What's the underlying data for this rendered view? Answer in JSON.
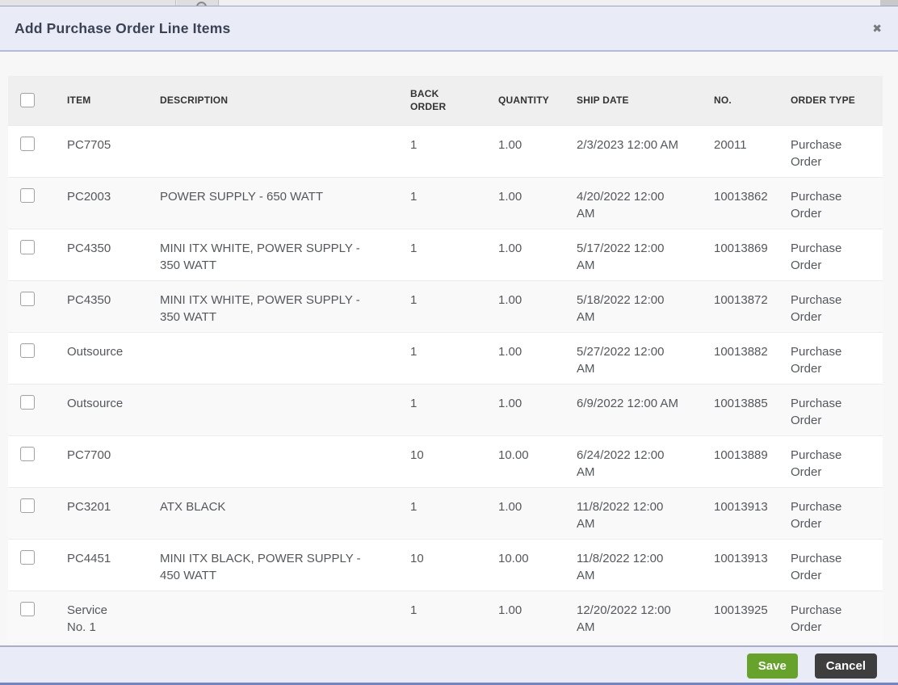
{
  "modal": {
    "title": "Add Purchase Order Line Items",
    "close_glyph": "✖"
  },
  "table": {
    "headers": [
      "ITEM",
      "DESCRIPTION",
      "BACK ORDER",
      "QUANTITY",
      "SHIP DATE",
      "NO.",
      "ORDER TYPE"
    ],
    "rows": [
      {
        "item": "PC7705",
        "description": "",
        "back_order": "1",
        "quantity": "1.00",
        "ship_date": "2/3/2023 12:00 AM",
        "no": "20011",
        "order_type": "Purchase Order"
      },
      {
        "item": "PC2003",
        "description": "POWER SUPPLY - 650 WATT",
        "back_order": "1",
        "quantity": "1.00",
        "ship_date": "4/20/2022 12:00 AM",
        "no": "10013862",
        "order_type": "Purchase Order"
      },
      {
        "item": "PC4350",
        "description": "MINI ITX WHITE, POWER SUPPLY - 350 WATT",
        "back_order": "1",
        "quantity": "1.00",
        "ship_date": "5/17/2022 12:00 AM",
        "no": "10013869",
        "order_type": "Purchase Order"
      },
      {
        "item": "PC4350",
        "description": "MINI ITX WHITE, POWER SUPPLY - 350 WATT",
        "back_order": "1",
        "quantity": "1.00",
        "ship_date": "5/18/2022 12:00 AM",
        "no": "10013872",
        "order_type": "Purchase Order"
      },
      {
        "item": "Outsource",
        "description": "",
        "back_order": "1",
        "quantity": "1.00",
        "ship_date": "5/27/2022 12:00 AM",
        "no": "10013882",
        "order_type": "Purchase Order"
      },
      {
        "item": "Outsource",
        "description": "",
        "back_order": "1",
        "quantity": "1.00",
        "ship_date": "6/9/2022 12:00 AM",
        "no": "10013885",
        "order_type": "Purchase Order"
      },
      {
        "item": "PC7700",
        "description": "",
        "back_order": "10",
        "quantity": "10.00",
        "ship_date": "6/24/2022 12:00 AM",
        "no": "10013889",
        "order_type": "Purchase Order"
      },
      {
        "item": "PC3201",
        "description": "ATX BLACK",
        "back_order": "1",
        "quantity": "1.00",
        "ship_date": "11/8/2022 12:00 AM",
        "no": "10013913",
        "order_type": "Purchase Order"
      },
      {
        "item": "PC4451",
        "description": "MINI ITX BLACK, POWER SUPPLY - 450 WATT",
        "back_order": "10",
        "quantity": "10.00",
        "ship_date": "11/8/2022 12:00 AM",
        "no": "10013913",
        "order_type": "Purchase Order"
      },
      {
        "item": "Service No. 1",
        "description": "",
        "back_order": "1",
        "quantity": "1.00",
        "ship_date": "12/20/2022 12:00 AM",
        "no": "10013925",
        "order_type": "Purchase Order"
      }
    ]
  },
  "footer": {
    "save_label": "Save",
    "cancel_label": "Cancel"
  },
  "colors": {
    "accent_green": "#67a22d",
    "dark_button": "#3e3e3e",
    "header_bg": "#e9ecf7",
    "footer_edge_blue": "#7484c5"
  }
}
